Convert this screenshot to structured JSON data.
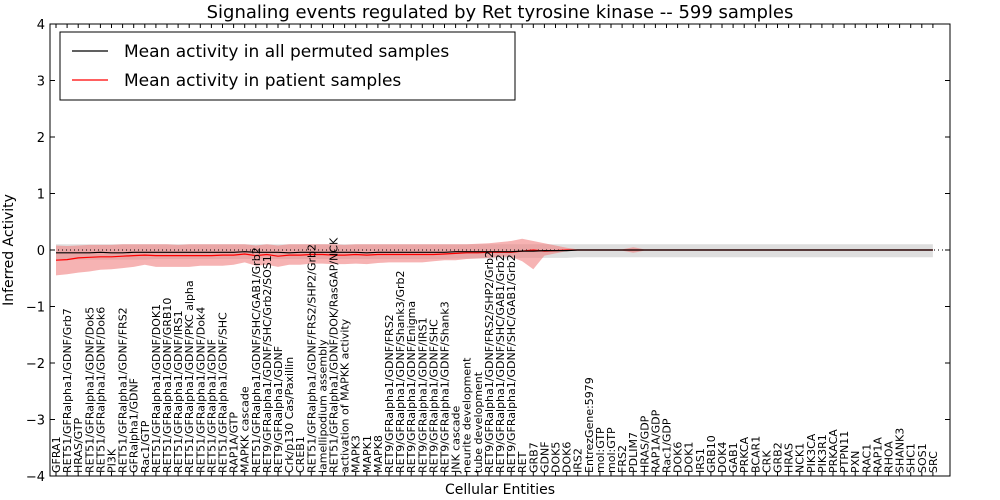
{
  "chart_data": {
    "type": "line",
    "title": "Signaling events regulated by Ret tyrosine kinase -- 599 samples",
    "xlabel": "Cellular Entities",
    "ylabel": "Inferred Activity",
    "ylim": [
      -4,
      4
    ],
    "yticks": [
      -4,
      -3,
      -2,
      -1,
      0,
      1,
      2,
      3,
      4
    ],
    "grid": false,
    "legend_position": "top-left",
    "colors": {
      "permuted_line": "#000000",
      "patient_line": "#ff0000",
      "permuted_band": "#c8c8c8",
      "patient_band": "#f08080",
      "zero_line": "#000000"
    },
    "categories": [
      "GFRA1",
      "RET51/GFRalpha1/GDNF/Grb7",
      "HRAS/GTP",
      "RET51/GFRalpha1/GDNF/Dok5",
      "RET51/GFRalpha1/GDNF/Dok6",
      "PI3K",
      "RET51/GFRalpha1/GDNF/FRS2",
      "GFRalpha1/GDNF",
      "Rac1/GTP",
      "RET51/GFRalpha1/GDNF/DOK1",
      "RET51/GFRalpha1/GDNF/GRB10",
      "RET51/GFRalpha1/GDNF/IRS1",
      "RET51/GFRalpha1/GDNF/PKC alpha",
      "RET51/GFRalpha1/GDNF/Dok4",
      "RET51/GFRalpha1/GDNF",
      "RET51/GFRalpha1/GDNF/SHC",
      "RAP1A/GTP",
      "MAPKK cascade",
      "RET51/GFRalpha1/GDNF/SHC/GAB1/Grb2",
      "RET9/GFRalpha1/GDNF/SHC/Grb2/SOS1",
      "RET9/GFRalpha1/GDNF",
      "Crk/p130 Cas/Paxillin",
      "CREB1",
      "RET51/GFRalpha1/GDNF/FRS2/SHP2/Grb2",
      "lamellipodium assembly",
      "RET51/GFRalpha1/GDNF/DOK/RasGAP/NCK",
      "activation of MAPKK activity",
      "MAPK3",
      "MAPK1",
      "MAPK8",
      "RET9/GFRalpha1/GDNF/FRS2",
      "RET9/GFRalpha1/GDNF/Shank3/Grb2",
      "RET9/GFRalpha1/GDNF/Enigma",
      "RET9/GFRalpha1/GDNF/IRS1",
      "RET9/GFRalpha1/GDNF/SHC",
      "RET9/GFRalpha1/GDNF/Shank3",
      "JNK cascade",
      "neurite development",
      "tube development",
      "RET9/GFRalpha1/GDNF/FRS2/SHP2/Grb2",
      "RET9/GFRalpha1/GDNF/SHC/GAB1/Grb2",
      "RET9/GFRalpha1/GDNF/SHC/GAB1/Grb2",
      "RET",
      "GRB7",
      "GDNF",
      "DOK5",
      "DOK6",
      "IRS2",
      "EntrezGene:5979",
      "mol:GTP",
      "mol:GTP",
      "FRS2",
      "PDLIM7",
      "HRAS/GDP",
      "RAP1A/GDP",
      "Rac1/GDP",
      "DOK6",
      "DOK1",
      "IRS1",
      "GRB10",
      "DOK4",
      "GAB1",
      "PRKCA",
      "BCAR1",
      "CRK",
      "GRB2",
      "HRAS",
      "NCK1",
      "PIK3CA",
      "PIK3R1",
      "PRKACA",
      "PTPN11",
      "PXN",
      "RAC1",
      "RAP1A",
      "RHOA",
      "SHANK3",
      "SHC1",
      "SOS1",
      "SRC"
    ],
    "series": [
      {
        "name": "Mean activity in all permuted samples",
        "values": [
          -0.05,
          -0.05,
          -0.05,
          -0.05,
          -0.04,
          -0.05,
          -0.05,
          -0.04,
          -0.04,
          -0.04,
          -0.04,
          -0.04,
          -0.04,
          -0.04,
          -0.04,
          -0.04,
          -0.04,
          -0.03,
          -0.04,
          -0.04,
          -0.04,
          -0.05,
          -0.04,
          -0.04,
          -0.04,
          -0.04,
          -0.04,
          -0.04,
          -0.05,
          -0.04,
          -0.04,
          -0.04,
          -0.04,
          -0.04,
          -0.04,
          -0.04,
          -0.03,
          -0.03,
          -0.03,
          -0.03,
          -0.03,
          -0.03,
          -0.02,
          -0.02,
          -0.01,
          -0.01,
          -0.01,
          0.0,
          0.0,
          0.0,
          0.0,
          0.0,
          0.0,
          0.0,
          0.0,
          0.0,
          0.0,
          0.0,
          0.0,
          0.0,
          0.0,
          0.0,
          0.0,
          0.0,
          0.0,
          0.0,
          0.0,
          0.0,
          0.0,
          0.0,
          0.0,
          0.0,
          0.0,
          0.0,
          0.0,
          0.0,
          0.0,
          0.0,
          0.0,
          0.0
        ],
        "lower": [
          -0.18,
          -0.18,
          -0.17,
          -0.17,
          -0.17,
          -0.17,
          -0.17,
          -0.17,
          -0.17,
          -0.16,
          -0.16,
          -0.16,
          -0.16,
          -0.16,
          -0.16,
          -0.16,
          -0.16,
          -0.16,
          -0.16,
          -0.16,
          -0.16,
          -0.16,
          -0.16,
          -0.16,
          -0.16,
          -0.16,
          -0.16,
          -0.16,
          -0.16,
          -0.16,
          -0.16,
          -0.16,
          -0.16,
          -0.16,
          -0.16,
          -0.16,
          -0.15,
          -0.15,
          -0.15,
          -0.15,
          -0.15,
          -0.15,
          -0.14,
          -0.14,
          -0.14,
          -0.14,
          -0.14,
          -0.13,
          -0.13,
          -0.13,
          -0.13,
          -0.13,
          -0.13,
          -0.13,
          -0.13,
          -0.13,
          -0.13,
          -0.13,
          -0.13,
          -0.13,
          -0.13,
          -0.13,
          -0.13,
          -0.13,
          -0.13,
          -0.13,
          -0.13,
          -0.13,
          -0.13,
          -0.13,
          -0.13,
          -0.13,
          -0.13,
          -0.13,
          -0.13,
          -0.13,
          -0.13,
          -0.13,
          -0.13,
          -0.13
        ],
        "upper": [
          0.1,
          0.1,
          0.1,
          0.1,
          0.1,
          0.1,
          0.1,
          0.1,
          0.1,
          0.1,
          0.1,
          0.1,
          0.1,
          0.1,
          0.1,
          0.1,
          0.1,
          0.1,
          0.1,
          0.1,
          0.1,
          0.1,
          0.1,
          0.1,
          0.1,
          0.1,
          0.1,
          0.1,
          0.1,
          0.1,
          0.1,
          0.1,
          0.1,
          0.1,
          0.1,
          0.1,
          0.1,
          0.1,
          0.1,
          0.1,
          0.1,
          0.1,
          0.1,
          0.1,
          0.1,
          0.1,
          0.1,
          0.1,
          0.1,
          0.1,
          0.1,
          0.1,
          0.1,
          0.1,
          0.1,
          0.1,
          0.1,
          0.1,
          0.1,
          0.1,
          0.1,
          0.1,
          0.1,
          0.1,
          0.1,
          0.1,
          0.1,
          0.1,
          0.1,
          0.1,
          0.1,
          0.1,
          0.1,
          0.1,
          0.1,
          0.1,
          0.1,
          0.1,
          0.1,
          0.1
        ]
      },
      {
        "name": "Mean activity in patient samples",
        "values": [
          -0.18,
          -0.17,
          -0.14,
          -0.13,
          -0.12,
          -0.12,
          -0.11,
          -0.1,
          -0.09,
          -0.1,
          -0.1,
          -0.1,
          -0.1,
          -0.1,
          -0.1,
          -0.09,
          -0.09,
          -0.07,
          -0.1,
          -0.08,
          -0.11,
          -0.09,
          -0.09,
          -0.08,
          -0.08,
          -0.09,
          -0.09,
          -0.08,
          -0.09,
          -0.08,
          -0.08,
          -0.08,
          -0.08,
          -0.08,
          -0.08,
          -0.07,
          -0.06,
          -0.05,
          -0.05,
          -0.04,
          -0.04,
          -0.04,
          -0.02,
          0.0,
          -0.02,
          -0.01,
          0.0,
          0.0,
          0.0,
          0.0,
          0.0,
          0.0,
          0.0,
          0.0,
          0.0,
          0.0,
          0.0,
          0.0,
          0.0,
          0.0,
          0.0,
          0.0,
          0.0,
          0.0,
          0.0,
          0.0,
          0.0,
          0.0,
          0.0,
          0.0,
          0.0,
          0.0,
          0.0,
          0.0,
          0.0,
          0.0,
          0.0,
          0.0,
          0.0,
          0.0
        ],
        "lower": [
          -0.45,
          -0.43,
          -0.4,
          -0.38,
          -0.35,
          -0.34,
          -0.32,
          -0.3,
          -0.26,
          -0.3,
          -0.3,
          -0.3,
          -0.3,
          -0.28,
          -0.28,
          -0.28,
          -0.26,
          -0.22,
          -0.28,
          -0.26,
          -0.3,
          -0.26,
          -0.26,
          -0.24,
          -0.24,
          -0.25,
          -0.25,
          -0.24,
          -0.25,
          -0.23,
          -0.22,
          -0.22,
          -0.22,
          -0.22,
          -0.2,
          -0.18,
          -0.18,
          -0.16,
          -0.15,
          -0.14,
          -0.12,
          -0.12,
          -0.2,
          -0.34,
          -0.1,
          -0.06,
          -0.02,
          -0.01,
          -0.01,
          -0.01,
          -0.01,
          -0.01,
          -0.05,
          -0.01,
          -0.01,
          -0.01,
          -0.01,
          -0.01,
          -0.01,
          -0.01,
          -0.01,
          -0.01,
          -0.01,
          -0.01,
          -0.01,
          -0.01,
          -0.01,
          -0.01,
          -0.01,
          -0.01,
          -0.01,
          -0.01,
          -0.01,
          -0.01,
          -0.01,
          -0.01,
          -0.01,
          -0.01,
          -0.01,
          -0.01
        ],
        "upper": [
          0.08,
          0.07,
          0.08,
          0.09,
          0.09,
          0.09,
          0.1,
          0.1,
          0.1,
          0.1,
          0.1,
          0.09,
          0.1,
          0.1,
          0.1,
          0.1,
          0.1,
          0.1,
          0.08,
          0.1,
          0.08,
          0.1,
          0.1,
          0.1,
          0.1,
          0.1,
          0.09,
          0.1,
          0.1,
          0.1,
          0.1,
          0.1,
          0.1,
          0.1,
          0.1,
          0.1,
          0.1,
          0.1,
          0.11,
          0.12,
          0.14,
          0.16,
          0.2,
          0.16,
          0.12,
          0.08,
          0.04,
          0.01,
          0.01,
          0.01,
          0.01,
          0.01,
          0.05,
          0.01,
          0.01,
          0.01,
          0.01,
          0.01,
          0.01,
          0.01,
          0.01,
          0.01,
          0.01,
          0.01,
          0.01,
          0.01,
          0.01,
          0.01,
          0.01,
          0.01,
          0.01,
          0.01,
          0.01,
          0.01,
          0.01,
          0.01,
          0.01,
          0.01,
          0.01,
          0.01
        ]
      }
    ]
  }
}
